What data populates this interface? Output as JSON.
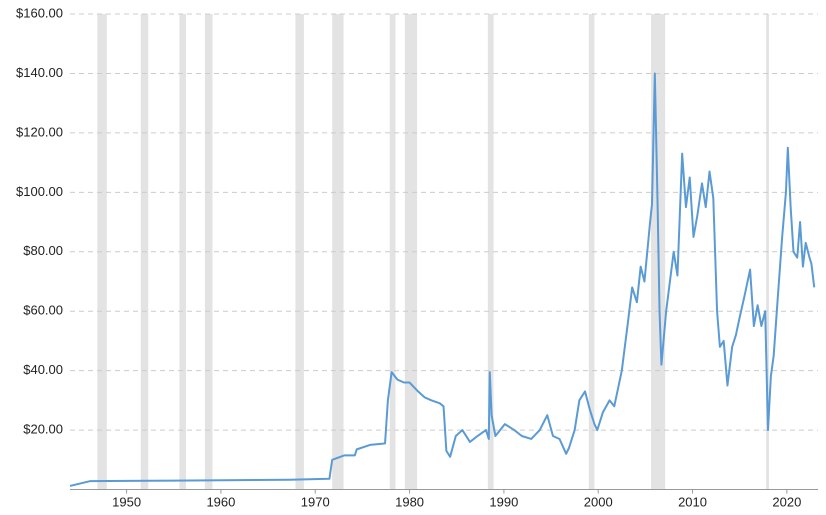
{
  "chart_data": {
    "type": "line",
    "x": [
      1944,
      1946.1,
      1955.1,
      1967.3,
      1971.5,
      1971.8,
      1973.1,
      1974.2,
      1974.4,
      1975.8,
      1977.4,
      1977.7,
      1978.1,
      1978.7,
      1979.4,
      1980,
      1980.9,
      1981.6,
      1982.3,
      1983.2,
      1983.6,
      1983.9,
      1984.3,
      1984.9,
      1985.6,
      1986.4,
      1987.2,
      1988.1,
      1988.4,
      1988.5,
      1988.7,
      1989.1,
      1990.1,
      1991.1,
      1991.9,
      1992.9,
      1993.8,
      1994.6,
      1995.2,
      1995.9,
      1996.6,
      1996.9,
      1997.5,
      1998,
      1998.6,
      1999.1,
      1999.6,
      1999.9,
      2000.5,
      2001.2,
      2001.7,
      2002.5,
      2003.1,
      2003.6,
      2004.1,
      2004.5,
      2004.9,
      2005.5,
      2005.7,
      2006,
      2006.3,
      2006.5,
      2006.7,
      2007.2,
      2007.6,
      2008,
      2008.4,
      2008.9,
      2009.3,
      2009.7,
      2010.1,
      2010.5,
      2011,
      2011.4,
      2011.8,
      2012.2,
      2012.6,
      2012.9,
      2013.3,
      2013.7,
      2014.2,
      2014.6,
      2015,
      2015.5,
      2016.1,
      2016.5,
      2016.9,
      2017.3,
      2017.7,
      2018,
      2018.3,
      2018.6,
      2019,
      2019.5,
      2019.9,
      2020.1,
      2020.4,
      2020.7,
      2021.1,
      2021.4,
      2021.7,
      2022,
      2022.4,
      2022.6,
      2022.9
    ],
    "values": [
      1.2,
      2.8,
      3.0,
      3.3,
      3.6,
      10,
      11.5,
      11.5,
      13.5,
      15,
      15.5,
      30,
      39.5,
      37,
      36,
      36,
      33,
      31,
      30,
      29,
      28,
      13,
      11,
      18,
      20,
      16,
      18,
      20,
      17,
      39.5,
      25,
      18,
      22,
      20,
      18,
      17,
      20,
      25,
      18,
      17,
      12,
      14,
      20,
      30,
      33,
      27,
      22,
      20,
      26,
      30,
      28,
      40,
      55,
      68,
      63,
      75,
      70,
      90,
      96,
      140,
      95,
      60,
      42,
      60,
      70,
      80,
      72,
      113,
      95,
      105,
      85,
      92,
      103,
      95,
      107,
      98,
      60,
      48,
      50,
      35,
      48,
      52,
      58,
      65,
      74,
      55,
      62,
      55,
      60,
      20,
      38,
      45,
      63,
      85,
      100,
      115,
      95,
      80,
      78,
      90,
      75,
      83,
      78,
      76,
      68
    ],
    "color": "#5b9bd5",
    "shaded_ranges": [
      [
        1946.9,
        1947.9
      ],
      [
        1951.5,
        1952.3
      ],
      [
        1955.6,
        1956.3
      ],
      [
        1958.3,
        1959.1
      ],
      [
        1967.9,
        1968.8
      ],
      [
        1971.8,
        1973
      ],
      [
        1977.9,
        1978.5
      ],
      [
        1979.5,
        1980.8
      ],
      [
        1988.3,
        1988.9
      ],
      [
        1999,
        1999.6
      ],
      [
        2005.6,
        2007.1
      ],
      [
        2017.8,
        2018.1
      ]
    ],
    "shade_color": "#e3e3e3",
    "xlim": [
      1944,
      2023.3
    ],
    "xticks": [
      1950,
      1960,
      1970,
      1980,
      1990,
      2000,
      2010,
      2020
    ],
    "ylim": [
      0,
      160
    ],
    "yticks": [
      {
        "value": 20,
        "label": "$20.00"
      },
      {
        "value": 40,
        "label": "$40.00"
      },
      {
        "value": 60,
        "label": "$60.00"
      },
      {
        "value": 80,
        "label": "$80.00"
      },
      {
        "value": 100,
        "label": "$100.00"
      },
      {
        "value": 120,
        "label": "$120.00"
      },
      {
        "value": 140,
        "label": "$140.00"
      },
      {
        "value": 160,
        "label": "$160.00"
      }
    ],
    "grid": true
  }
}
